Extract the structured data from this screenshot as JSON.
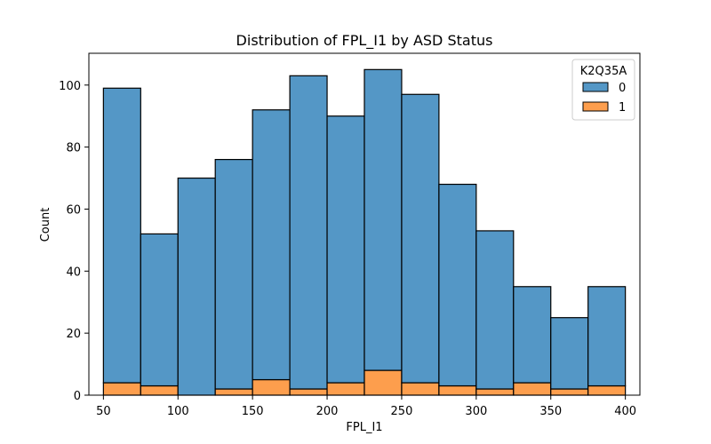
{
  "chart_data": {
    "type": "bar",
    "subtype": "stacked-histogram",
    "title": "Distribution of FPL_I1 by ASD Status",
    "xlabel": "FPL_I1",
    "ylabel": "Count",
    "bin_edges": [
      50,
      75,
      100,
      125,
      150,
      175,
      200,
      225,
      250,
      275,
      300,
      325,
      350,
      375,
      400
    ],
    "series": [
      {
        "name": "0",
        "color": "#5497c6",
        "values": [
          95,
          49,
          70,
          74,
          87,
          101,
          86,
          97,
          93,
          65,
          51,
          31,
          23,
          32
        ]
      },
      {
        "name": "1",
        "color": "#fd9e4d",
        "values": [
          4,
          3,
          0,
          2,
          5,
          2,
          4,
          8,
          4,
          3,
          2,
          4,
          2,
          3
        ]
      }
    ],
    "totals": [
      99,
      52,
      70,
      76,
      92,
      103,
      90,
      105,
      97,
      68,
      53,
      35,
      25,
      35
    ],
    "xlim": [
      40.25,
      409.75
    ],
    "ylim": [
      0,
      110.25
    ],
    "x_ticks": [
      50,
      100,
      150,
      200,
      250,
      300,
      350,
      400
    ],
    "y_ticks": [
      0,
      20,
      40,
      60,
      80,
      100
    ],
    "legend": {
      "title": "K2Q35A",
      "position": "top-right",
      "entries": [
        "0",
        "1"
      ]
    },
    "grid": false
  }
}
